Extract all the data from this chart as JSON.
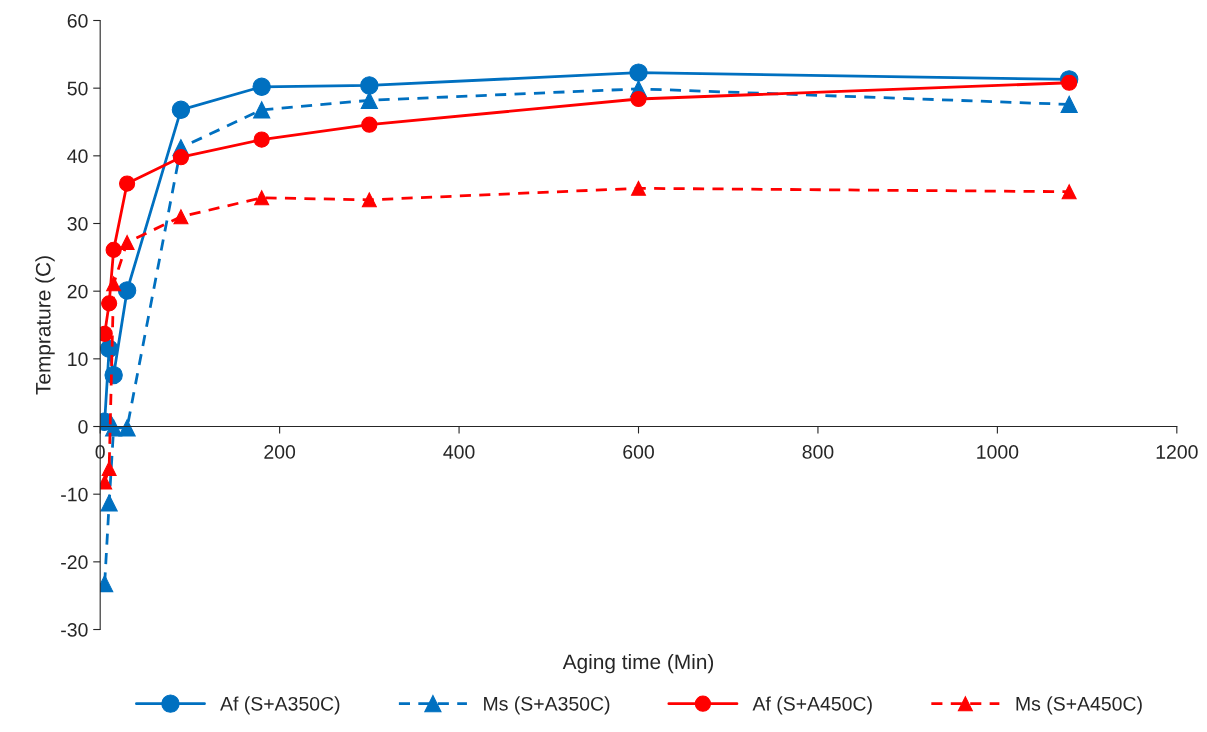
{
  "chart_data": {
    "type": "line",
    "xlabel": "Aging time (Min)",
    "ylabel": "Temprature (C)",
    "xlim": [
      0,
      1200
    ],
    "xticks": [
      0,
      200,
      400,
      600,
      800,
      1000,
      1200
    ],
    "ylim": [
      -30,
      60
    ],
    "yticks": [
      -30,
      -20,
      -10,
      0,
      10,
      20,
      30,
      40,
      50,
      60
    ],
    "grid": false,
    "legend": "bottom",
    "series": [
      {
        "name": "Af (S+A350C)",
        "color": "#0070c0",
        "marker": "circle",
        "line_style": "solid",
        "x": [
          5,
          10,
          15,
          30,
          90,
          180,
          300,
          600,
          1080
        ],
        "values": [
          0.7,
          11.5,
          7.6,
          20.1,
          46.8,
          50.2,
          50.4,
          52.3,
          51.3
        ]
      },
      {
        "name": "Ms (S+A350C)",
        "color": "#0070c0",
        "marker": "triangle",
        "line_style": "dashed",
        "x": [
          5,
          10,
          15,
          30,
          90,
          180,
          300,
          600,
          1080
        ],
        "values": [
          -23.2,
          -11.3,
          -0.2,
          -0.2,
          41.2,
          46.8,
          48.2,
          49.9,
          47.6
        ]
      },
      {
        "name": "Af (S+A450C)",
        "color": "#ff0000",
        "marker": "circle",
        "line_style": "solid",
        "x": [
          5,
          10,
          15,
          30,
          90,
          180,
          300,
          600,
          1080
        ],
        "values": [
          13.7,
          18.2,
          26.1,
          35.9,
          39.8,
          42.4,
          44.6,
          48.4,
          50.8
        ]
      },
      {
        "name": "Ms (S+A450C)",
        "color": "#ff0000",
        "marker": "triangle",
        "line_style": "dashed",
        "x": [
          5,
          10,
          15,
          30,
          90,
          180,
          300,
          600,
          1080
        ],
        "values": [
          -8.2,
          -6.2,
          21.1,
          27.2,
          31.0,
          33.8,
          33.5,
          35.2,
          34.7
        ]
      }
    ]
  }
}
